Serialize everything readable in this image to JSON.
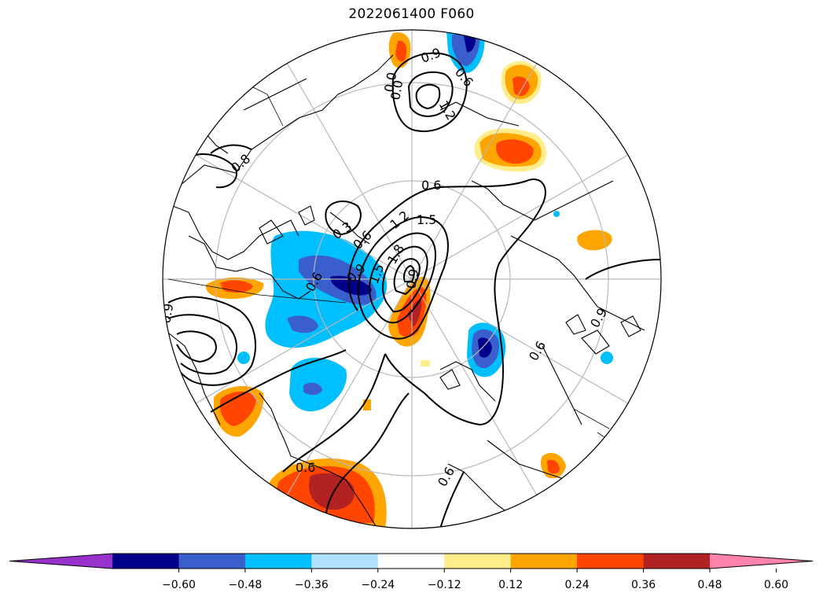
{
  "title": "2022061400 F060",
  "colorbar": {
    "colors": [
      "#9932cc",
      "#00008b",
      "#3a5fcd",
      "#00bfff",
      "#b0e2ff",
      "#ffffff",
      "#ffec8b",
      "#ffa500",
      "#ff4500",
      "#b22222",
      "#ff83aa"
    ],
    "ticks": [
      "−0.60",
      "−0.48",
      "−0.36",
      "−0.24",
      "−0.12",
      "0.12",
      "0.24",
      "0.36",
      "0.48",
      "0.60"
    ],
    "extend": "both"
  },
  "contour_labels": [
    "0.6",
    "0.3",
    "0.6",
    "0.9",
    "1.2",
    "1.5",
    "1.8",
    "1.5",
    "0.9",
    "0.6",
    "0.9",
    "0.6",
    "0.0",
    "1.2",
    "0.8",
    "0.0",
    "0.6",
    "0.6",
    "0.9",
    "0.6",
    "0.9"
  ]
}
